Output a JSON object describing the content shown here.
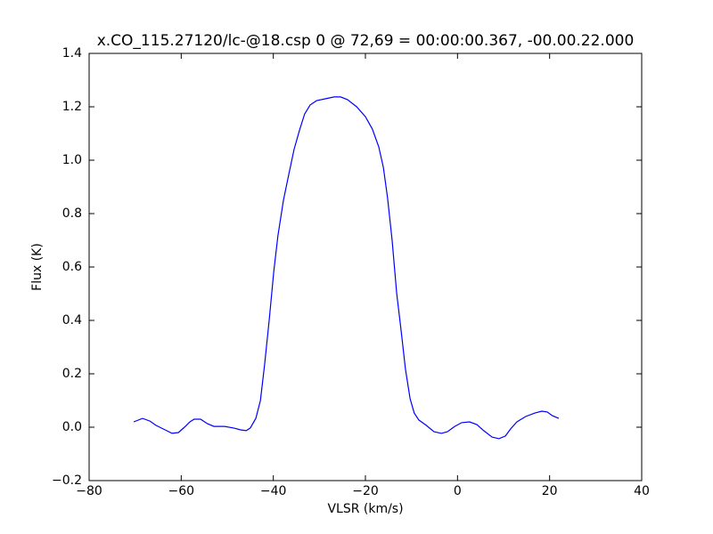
{
  "chart_data": {
    "type": "line",
    "title": "x.CO_115.27120/lc-@18.csp 0 @ 72,69 = 00:00:00.367, -00.00.22.000",
    "xlabel": "VLSR (km/s)",
    "ylabel": "Flux (K)",
    "x": [
      -70.3,
      -68.4,
      -66.8,
      -65.5,
      -63.5,
      -62.0,
      -60.6,
      -59.3,
      -58.1,
      -57.2,
      -55.8,
      -54.3,
      -52.9,
      -50.6,
      -48.6,
      -47.1,
      -45.9,
      -45.0,
      -43.8,
      -42.8,
      -41.9,
      -40.9,
      -39.9,
      -39.0,
      -37.8,
      -36.6,
      -35.5,
      -34.3,
      -33.2,
      -32.0,
      -30.6,
      -28.7,
      -26.8,
      -25.4,
      -23.9,
      -21.9,
      -20.0,
      -18.5,
      -17.1,
      -16.1,
      -15.2,
      -14.2,
      -13.2,
      -12.3,
      -11.3,
      -10.3,
      -9.4,
      -8.4,
      -6.8,
      -5.1,
      -3.5,
      -2.2,
      -0.6,
      0.9,
      2.6,
      4.2,
      5.7,
      7.5,
      9.0,
      10.4,
      11.5,
      12.9,
      14.8,
      16.8,
      18.3,
      19.5,
      20.6,
      22.0
    ],
    "series": [
      {
        "color": "#0000ff",
        "values": [
          0.02,
          0.033,
          0.023,
          0.007,
          -0.01,
          -0.023,
          -0.02,
          0.0,
          0.02,
          0.03,
          0.03,
          0.013,
          0.003,
          0.003,
          -0.003,
          -0.01,
          -0.013,
          -0.003,
          0.033,
          0.1,
          0.233,
          0.4,
          0.583,
          0.717,
          0.85,
          0.95,
          1.04,
          1.113,
          1.173,
          1.207,
          1.223,
          1.23,
          1.237,
          1.237,
          1.227,
          1.2,
          1.163,
          1.117,
          1.05,
          0.973,
          0.86,
          0.7,
          0.5,
          0.37,
          0.217,
          0.107,
          0.053,
          0.027,
          0.007,
          -0.017,
          -0.023,
          -0.017,
          0.003,
          0.017,
          0.02,
          0.01,
          -0.013,
          -0.037,
          -0.043,
          -0.033,
          -0.007,
          0.02,
          0.04,
          0.053,
          0.06,
          0.057,
          0.043,
          0.033
        ]
      }
    ],
    "xlim": [
      -80,
      40
    ],
    "xticks": [
      {
        "value": -80,
        "label": "−80"
      },
      {
        "value": -60,
        "label": "−60"
      },
      {
        "value": -40,
        "label": "−40"
      },
      {
        "value": -20,
        "label": "−20"
      },
      0,
      20,
      40
    ],
    "ylim": [
      -0.2,
      1.4
    ],
    "yticks": [
      {
        "value": -0.2,
        "label": "−0.2"
      },
      {
        "value": 0,
        "label": "0.0"
      },
      0.2,
      0.4,
      0.6,
      0.8,
      {
        "value": 1,
        "label": "1.0"
      },
      1.2,
      1.4
    ],
    "grid": false
  }
}
